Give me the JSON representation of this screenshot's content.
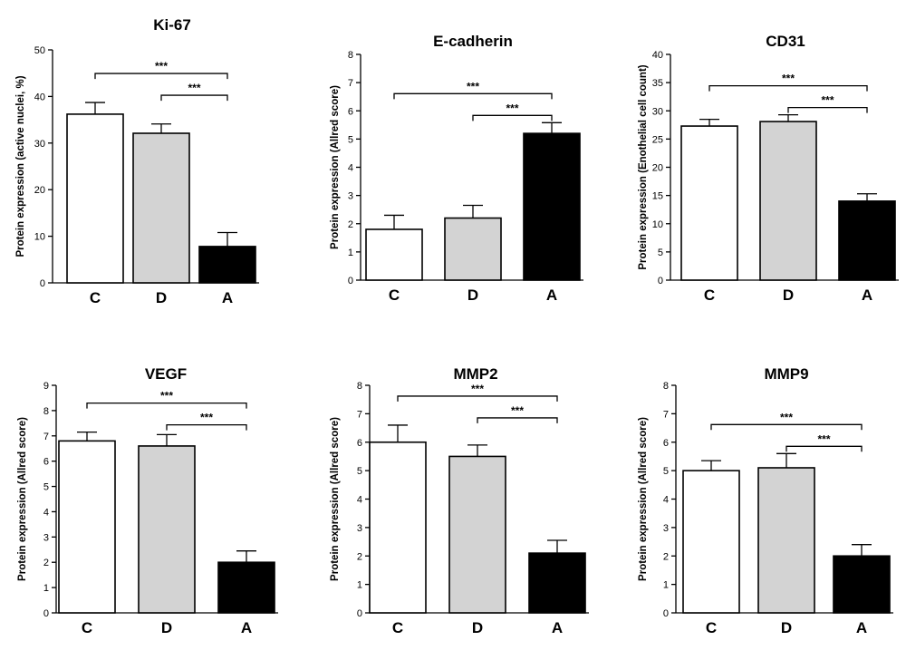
{
  "colors": {
    "C": "#ffffff",
    "D": "#d3d3d3",
    "A": "#000000",
    "stroke": "#000000"
  },
  "chart_data": [
    {
      "type": "bar",
      "title": "Ki-67",
      "ylabel": "Protein expression (active nuclei, %)",
      "categories": [
        "C",
        "D",
        "A"
      ],
      "values": [
        36.2,
        32.1,
        7.8
      ],
      "errors": [
        2.5,
        2.0,
        3.0
      ],
      "ylim": [
        0,
        50
      ],
      "yticks": [
        "0",
        "10",
        "20",
        "30",
        "40",
        "50"
      ],
      "significance": [
        {
          "from": "C",
          "to": "A",
          "label": "***"
        },
        {
          "from": "D",
          "to": "A",
          "label": "***"
        }
      ]
    },
    {
      "type": "bar",
      "title": "E-cadherin",
      "ylabel": "Protein expression (Allred score)",
      "categories": [
        "C",
        "D",
        "A"
      ],
      "values": [
        1.8,
        2.2,
        5.2
      ],
      "errors": [
        0.5,
        0.45,
        0.38
      ],
      "ylim": [
        0,
        8
      ],
      "yticks": [
        "0",
        "1",
        "2",
        "3",
        "4",
        "5",
        "6",
        "7",
        "8"
      ],
      "significance": [
        {
          "from": "C",
          "to": "A",
          "label": "***"
        },
        {
          "from": "D",
          "to": "A",
          "label": "***"
        }
      ]
    },
    {
      "type": "bar",
      "title": "CD31",
      "ylabel": "Protein expression (Enothelial cell count)",
      "categories": [
        "C",
        "D",
        "A"
      ],
      "values": [
        27.3,
        28.1,
        14.0
      ],
      "errors": [
        1.2,
        1.2,
        1.3
      ],
      "ylim": [
        0,
        40
      ],
      "yticks": [
        "0",
        "5",
        "10",
        "15",
        "20",
        "25",
        "30",
        "35",
        "40"
      ],
      "significance": [
        {
          "from": "C",
          "to": "A",
          "label": "***"
        },
        {
          "from": "D",
          "to": "A",
          "label": "***"
        }
      ]
    },
    {
      "type": "bar",
      "title": "VEGF",
      "ylabel": "Protein expression (Allred score)",
      "categories": [
        "C",
        "D",
        "A"
      ],
      "values": [
        6.8,
        6.6,
        2.0
      ],
      "errors": [
        0.35,
        0.45,
        0.45
      ],
      "ylim": [
        0,
        9
      ],
      "yticks": [
        "0",
        "1",
        "2",
        "3",
        "4",
        "5",
        "6",
        "7",
        "8",
        "9"
      ],
      "significance": [
        {
          "from": "C",
          "to": "A",
          "label": "***"
        },
        {
          "from": "D",
          "to": "A",
          "label": "***"
        }
      ]
    },
    {
      "type": "bar",
      "title": "MMP2",
      "ylabel": "Protein expression (Allred score)",
      "categories": [
        "C",
        "D",
        "A"
      ],
      "values": [
        6.0,
        5.5,
        2.1
      ],
      "errors": [
        0.6,
        0.4,
        0.45
      ],
      "ylim": [
        0,
        8
      ],
      "yticks": [
        "0",
        "1",
        "2",
        "3",
        "4",
        "5",
        "6",
        "7",
        "8"
      ],
      "significance": [
        {
          "from": "C",
          "to": "A",
          "label": "***"
        },
        {
          "from": "D",
          "to": "A",
          "label": "***"
        }
      ]
    },
    {
      "type": "bar",
      "title": "MMP9",
      "ylabel": "Protein expression (Allred score)",
      "categories": [
        "C",
        "D",
        "A"
      ],
      "values": [
        5.0,
        5.1,
        2.0
      ],
      "errors": [
        0.35,
        0.5,
        0.4
      ],
      "ylim": [
        0,
        8
      ],
      "yticks": [
        "0",
        "1",
        "2",
        "3",
        "4",
        "5",
        "6",
        "7",
        "8"
      ],
      "significance": [
        {
          "from": "C",
          "to": "A",
          "label": "***"
        },
        {
          "from": "D",
          "to": "A",
          "label": "***"
        }
      ]
    }
  ]
}
